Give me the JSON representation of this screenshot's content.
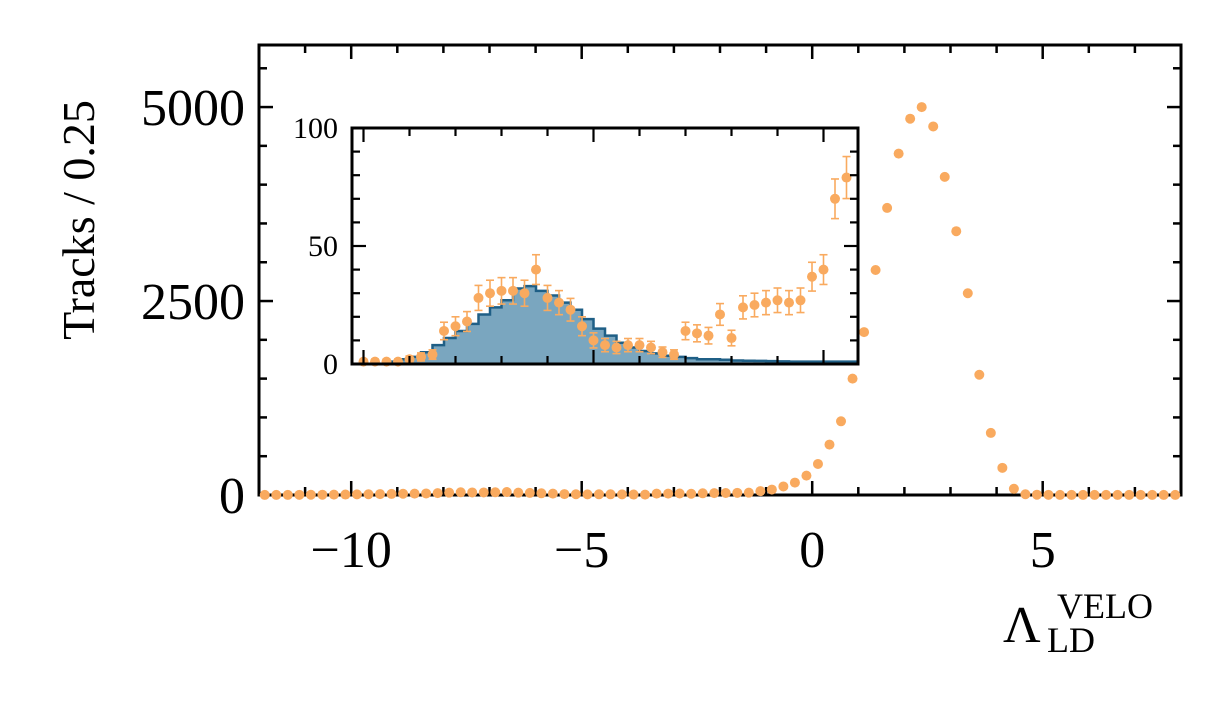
{
  "colors": {
    "data": "#f9aa5f",
    "fill": "#7aa6bf",
    "edge": "#1f5f86",
    "axis": "#000000"
  },
  "chart_data": [
    {
      "type": "scatter",
      "ylabel": "Tracks / 0.25",
      "xlabel_main": "Λ",
      "xlabel_sup": "VELO",
      "xlabel_sub": "LD",
      "xlim": [
        -12,
        8
      ],
      "ylim": [
        0,
        5800
      ],
      "xticks": [
        -10,
        -5,
        0,
        5
      ],
      "xtick_labels": [
        "−10",
        "−5",
        "0",
        "5"
      ],
      "yticks": [
        0,
        2500,
        5000
      ],
      "ytick_labels": [
        "0",
        "2500",
        "5000"
      ],
      "series": [
        {
          "x": [
            -11.875,
            -11.625,
            -11.375,
            -11.125,
            -10.875,
            -10.625,
            -10.375,
            -10.125,
            -9.875,
            -9.625,
            -9.375,
            -9.125,
            -8.875,
            -8.625,
            -8.375,
            -8.125,
            -7.875,
            -7.625,
            -7.375,
            -7.125,
            -6.875,
            -6.625,
            -6.375,
            -6.125,
            -5.875,
            -5.625,
            -5.375,
            -5.125,
            -4.875,
            -4.625,
            -4.375,
            -4.125,
            -3.875,
            -3.625,
            -3.375,
            -3.125,
            -2.875,
            -2.625,
            -2.375,
            -2.125,
            -1.875,
            -1.625,
            -1.375,
            -1.125,
            -0.875,
            -0.625,
            -0.375,
            -0.125,
            0.125,
            0.375,
            0.625,
            0.875,
            1.125,
            1.375,
            1.625,
            1.875,
            2.125,
            2.375,
            2.625,
            2.875,
            3.125,
            3.375,
            3.625,
            3.875,
            4.125,
            4.375,
            4.625,
            4.875,
            5.125,
            5.375,
            5.625,
            5.875,
            6.125,
            6.375,
            6.625,
            6.875,
            7.125,
            7.375,
            7.625,
            7.875
          ],
          "y": [
            1,
            1,
            1,
            2,
            3,
            4,
            5,
            6,
            8,
            10,
            12,
            14,
            16,
            18,
            20,
            24,
            30,
            35,
            33,
            33,
            35,
            38,
            30,
            27,
            22,
            18,
            12,
            10,
            8,
            9,
            9,
            8,
            6,
            5,
            18,
            18,
            19,
            16,
            22,
            24,
            26,
            28,
            30,
            50,
            70,
            110,
            160,
            250,
            400,
            650,
            950,
            1500,
            2100,
            2900,
            3700,
            4400,
            4850,
            5000,
            4750,
            4100,
            3400,
            2600,
            1550,
            800,
            350,
            80,
            10,
            4,
            2,
            1,
            1,
            1,
            1,
            1,
            1,
            1,
            1,
            1,
            1,
            1
          ]
        }
      ]
    },
    {
      "type": "bar",
      "xlim": [
        -10.25,
        0.75
      ],
      "ylim": [
        0,
        100
      ],
      "yticks": [
        0,
        50,
        100
      ],
      "ytick_labels": [
        "0",
        "50",
        "100"
      ],
      "histogram": {
        "bin_edges": [
          -10.25,
          -10.0,
          -9.75,
          -9.5,
          -9.25,
          -9.0,
          -8.75,
          -8.5,
          -8.25,
          -8.0,
          -7.75,
          -7.5,
          -7.25,
          -7.0,
          -6.75,
          -6.5,
          -6.25,
          -6.0,
          -5.75,
          -5.5,
          -5.25,
          -5.0,
          -4.75,
          -4.5,
          -4.25,
          -4.0,
          -3.75,
          -3.5,
          -3.25,
          -3.0,
          -2.75,
          -2.5,
          -2.25,
          -2.0,
          -1.75,
          -1.5,
          -1.25,
          -1.0,
          -0.75,
          -0.5,
          -0.25,
          0.0,
          0.25,
          0.5,
          0.75
        ],
        "values": [
          0,
          0,
          0,
          1,
          2,
          3,
          5,
          8,
          11,
          14,
          17,
          21,
          24,
          27,
          32,
          33,
          31,
          29,
          26,
          23,
          19,
          15,
          12,
          9,
          7,
          5.5,
          4.5,
          3.5,
          3,
          2.5,
          2,
          2,
          1.8,
          1.5,
          1.4,
          1.3,
          1.2,
          1.1,
          1,
          1,
          1,
          1,
          1,
          1
        ]
      },
      "points": {
        "x": [
          -10.0,
          -9.75,
          -9.5,
          -9.25,
          -9.0,
          -8.75,
          -8.5,
          -8.25,
          -8.0,
          -7.75,
          -7.5,
          -7.25,
          -7.0,
          -6.75,
          -6.5,
          -6.25,
          -6.0,
          -5.75,
          -5.5,
          -5.25,
          -5.0,
          -4.75,
          -4.5,
          -4.25,
          -4.0,
          -3.75,
          -3.5,
          -3.25,
          -3.0,
          -2.75,
          -2.5,
          -2.25,
          -2.0,
          -1.75,
          -1.5,
          -1.25,
          -1.0,
          -0.75,
          -0.5,
          -0.25,
          0.0,
          0.25,
          0.5
        ],
        "y": [
          1,
          1,
          1,
          1,
          2,
          3,
          4,
          14,
          16,
          18,
          28,
          30,
          31,
          31,
          30,
          40,
          28,
          26,
          23,
          16,
          10,
          8,
          7,
          8,
          8,
          7,
          5,
          4,
          14,
          13,
          12,
          21,
          11,
          24,
          25,
          26,
          27,
          26,
          27,
          37,
          40,
          70,
          79
        ],
        "err": [
          1,
          1,
          1,
          1,
          1.4,
          1.7,
          2,
          3.7,
          4,
          4.2,
          5.3,
          5.5,
          5.6,
          5.6,
          5.5,
          6.3,
          5.3,
          5.1,
          4.8,
          4,
          3.2,
          2.8,
          2.6,
          2.8,
          2.8,
          2.6,
          2.2,
          2,
          3.7,
          3.6,
          3.5,
          4.6,
          3.3,
          4.9,
          5,
          5.1,
          5.2,
          5.1,
          5.2,
          6.1,
          6.3,
          8.4,
          8.9
        ]
      }
    }
  ]
}
